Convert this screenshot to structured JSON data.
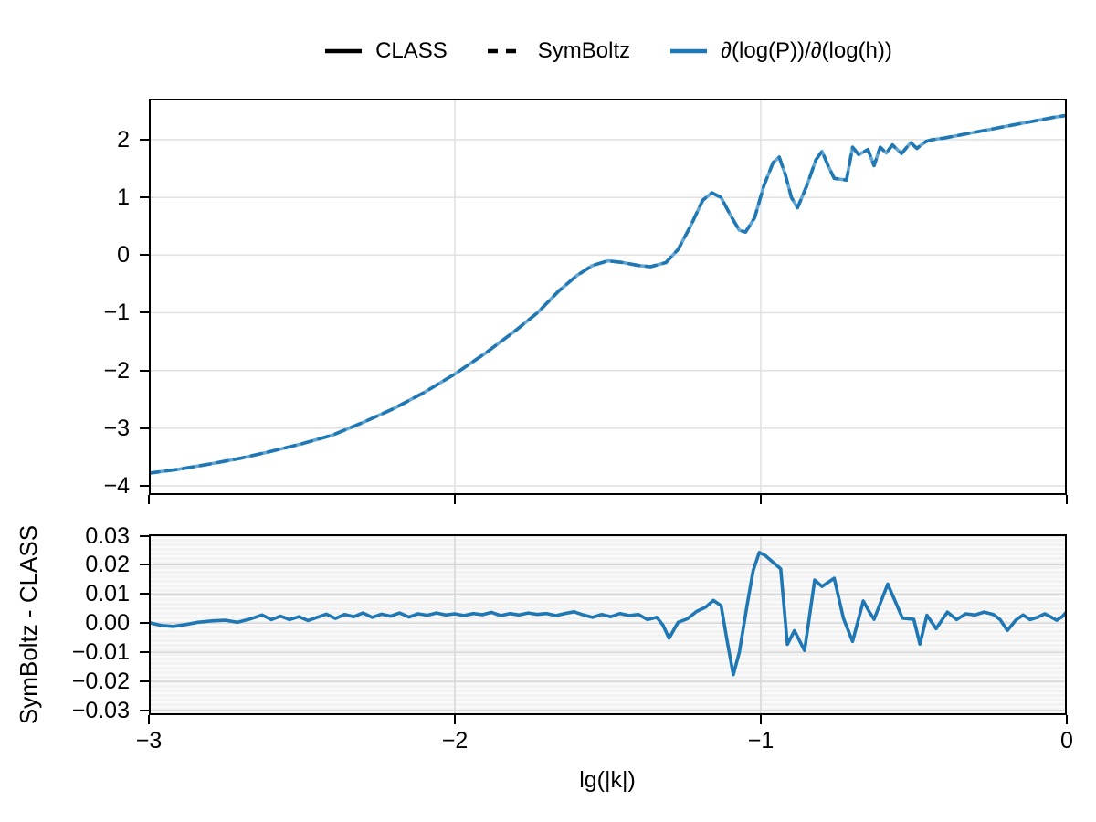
{
  "colors": {
    "accent_blue": "#1f77b4",
    "light_blue": "#64a7d2",
    "black": "#000000",
    "grid_main": "#e2e2e2",
    "grid_residual": "#d8d8d8",
    "residual_bg_stripe": "#f2f2f2"
  },
  "chart_data": [
    {
      "type": "line",
      "panel": "main",
      "title": "",
      "xlabel": "",
      "ylabel": "",
      "xlim": [
        -3,
        0
      ],
      "ylim": [
        -4.158,
        2.712
      ],
      "xticks": [
        -3,
        -2,
        -1,
        0
      ],
      "xtick_labels": [
        "−3",
        "−2",
        "−1",
        "0"
      ],
      "xtick_labels_visible": false,
      "yticks": [
        2,
        1,
        0,
        -1,
        -2,
        -3,
        -4
      ],
      "ytick_labels": [
        "2",
        "1",
        "0",
        "−1",
        "−2",
        "−3",
        "−4"
      ],
      "grid": true,
      "legend": {
        "position": "top-center",
        "items": [
          {
            "label": "CLASS",
            "linestyle": "solid",
            "color": "#000000"
          },
          {
            "label": "SymBoltz",
            "linestyle": "dashed",
            "color": "#000000"
          },
          {
            "label": "∂(log(P))/∂(log(h))",
            "linestyle": "solid",
            "color": "#1f77b4"
          }
        ]
      },
      "series": [
        {
          "name": "CLASS",
          "linestyle": "solid",
          "color": "#64a7d2",
          "points_ref": "curve"
        },
        {
          "name": "SymBoltz",
          "linestyle": "dashed",
          "color": "#1f77b4",
          "points_ref": "curve"
        }
      ],
      "curve": [
        [
          -3.0,
          -3.78
        ],
        [
          -2.9,
          -3.71
        ],
        [
          -2.8,
          -3.62
        ],
        [
          -2.7,
          -3.52
        ],
        [
          -2.6,
          -3.4
        ],
        [
          -2.5,
          -3.27
        ],
        [
          -2.4,
          -3.12
        ],
        [
          -2.3,
          -2.9
        ],
        [
          -2.2,
          -2.66
        ],
        [
          -2.1,
          -2.38
        ],
        [
          -2.0,
          -2.06
        ],
        [
          -1.9,
          -1.7
        ],
        [
          -1.8,
          -1.3
        ],
        [
          -1.73,
          -1.0
        ],
        [
          -1.66,
          -0.62
        ],
        [
          -1.6,
          -0.35
        ],
        [
          -1.55,
          -0.18
        ],
        [
          -1.5,
          -0.1
        ],
        [
          -1.45,
          -0.13
        ],
        [
          -1.4,
          -0.18
        ],
        [
          -1.36,
          -0.2
        ],
        [
          -1.31,
          -0.13
        ],
        [
          -1.27,
          0.1
        ],
        [
          -1.23,
          0.5
        ],
        [
          -1.19,
          0.95
        ],
        [
          -1.16,
          1.08
        ],
        [
          -1.13,
          1.0
        ],
        [
          -1.1,
          0.7
        ],
        [
          -1.07,
          0.43
        ],
        [
          -1.05,
          0.4
        ],
        [
          -1.02,
          0.65
        ],
        [
          -0.99,
          1.2
        ],
        [
          -0.96,
          1.6
        ],
        [
          -0.94,
          1.7
        ],
        [
          -0.92,
          1.4
        ],
        [
          -0.9,
          1.0
        ],
        [
          -0.88,
          0.82
        ],
        [
          -0.85,
          1.2
        ],
        [
          -0.82,
          1.65
        ],
        [
          -0.8,
          1.8
        ],
        [
          -0.78,
          1.55
        ],
        [
          -0.76,
          1.33
        ],
        [
          -0.72,
          1.3
        ],
        [
          -0.7,
          1.87
        ],
        [
          -0.68,
          1.74
        ],
        [
          -0.65,
          1.83
        ],
        [
          -0.63,
          1.55
        ],
        [
          -0.61,
          1.87
        ],
        [
          -0.59,
          1.77
        ],
        [
          -0.57,
          1.91
        ],
        [
          -0.54,
          1.76
        ],
        [
          -0.51,
          1.95
        ],
        [
          -0.49,
          1.85
        ],
        [
          -0.46,
          1.97
        ],
        [
          -0.44,
          2.0
        ],
        [
          -0.4,
          2.03
        ],
        [
          -0.36,
          2.07
        ],
        [
          -0.32,
          2.11
        ],
        [
          -0.28,
          2.15
        ],
        [
          -0.24,
          2.19
        ],
        [
          -0.2,
          2.23
        ],
        [
          -0.16,
          2.27
        ],
        [
          -0.12,
          2.31
        ],
        [
          -0.08,
          2.35
        ],
        [
          -0.04,
          2.39
        ],
        [
          0.0,
          2.42
        ]
      ]
    },
    {
      "type": "line",
      "panel": "residual",
      "title": "",
      "xlabel": "lg(|k|)",
      "ylabel": "SymBoltz - CLASS",
      "xlim": [
        -3,
        0
      ],
      "ylim": [
        -0.0316,
        0.0305
      ],
      "xticks": [
        -3,
        -2,
        -1,
        0
      ],
      "xtick_labels": [
        "−3",
        "−2",
        "−1",
        "0"
      ],
      "xtick_labels_visible": true,
      "yticks": [
        0.03,
        0.02,
        0.01,
        0,
        -0.01,
        -0.02,
        -0.03
      ],
      "ytick_labels": [
        "0.03",
        "0.02",
        "0.01",
        "0.00",
        "−0.01",
        "−0.02",
        "−0.03"
      ],
      "grid": true,
      "series": [
        {
          "name": "SymBoltz minus CLASS",
          "linestyle": "solid",
          "color": "#1f77b4",
          "points_ref": "curve"
        }
      ],
      "curve": [
        [
          -3.0,
          0.0002
        ],
        [
          -2.96,
          -0.0008
        ],
        [
          -2.92,
          -0.0011
        ],
        [
          -2.88,
          -0.0005
        ],
        [
          -2.84,
          0.0003
        ],
        [
          -2.79,
          0.0008
        ],
        [
          -2.75,
          0.001
        ],
        [
          -2.71,
          0.0003
        ],
        [
          -2.67,
          0.0014
        ],
        [
          -2.63,
          0.0028
        ],
        [
          -2.6,
          0.0012
        ],
        [
          -2.57,
          0.0024
        ],
        [
          -2.54,
          0.0012
        ],
        [
          -2.51,
          0.0022
        ],
        [
          -2.48,
          0.0009
        ],
        [
          -2.45,
          0.002
        ],
        [
          -2.42,
          0.0031
        ],
        [
          -2.39,
          0.0016
        ],
        [
          -2.36,
          0.003
        ],
        [
          -2.33,
          0.0022
        ],
        [
          -2.3,
          0.0035
        ],
        [
          -2.27,
          0.002
        ],
        [
          -2.24,
          0.0031
        ],
        [
          -2.21,
          0.0024
        ],
        [
          -2.18,
          0.0035
        ],
        [
          -2.15,
          0.0021
        ],
        [
          -2.12,
          0.0032
        ],
        [
          -2.09,
          0.0027
        ],
        [
          -2.06,
          0.0035
        ],
        [
          -2.03,
          0.0028
        ],
        [
          -2.0,
          0.0032
        ],
        [
          -1.97,
          0.0026
        ],
        [
          -1.94,
          0.0033
        ],
        [
          -1.91,
          0.0029
        ],
        [
          -1.88,
          0.0037
        ],
        [
          -1.85,
          0.0026
        ],
        [
          -1.82,
          0.0033
        ],
        [
          -1.79,
          0.0028
        ],
        [
          -1.76,
          0.0035
        ],
        [
          -1.73,
          0.003
        ],
        [
          -1.7,
          0.0033
        ],
        [
          -1.67,
          0.0026
        ],
        [
          -1.64,
          0.0033
        ],
        [
          -1.61,
          0.0039
        ],
        [
          -1.58,
          0.0028
        ],
        [
          -1.55,
          0.002
        ],
        [
          -1.52,
          0.003
        ],
        [
          -1.49,
          0.0022
        ],
        [
          -1.46,
          0.0033
        ],
        [
          -1.43,
          0.0026
        ],
        [
          -1.4,
          0.003
        ],
        [
          -1.37,
          0.0012
        ],
        [
          -1.34,
          0.002
        ],
        [
          -1.32,
          -0.0006
        ],
        [
          -1.3,
          -0.0052
        ],
        [
          -1.27,
          0.0003
        ],
        [
          -1.24,
          0.0015
        ],
        [
          -1.21,
          0.004
        ],
        [
          -1.18,
          0.0055
        ],
        [
          -1.155,
          0.0078
        ],
        [
          -1.13,
          0.006
        ],
        [
          -1.11,
          -0.006
        ],
        [
          -1.09,
          -0.0177
        ],
        [
          -1.07,
          -0.01
        ],
        [
          -1.045,
          0.006
        ],
        [
          -1.025,
          0.018
        ],
        [
          -1.005,
          0.0243
        ],
        [
          -0.985,
          0.0232
        ],
        [
          -0.95,
          0.02
        ],
        [
          -0.935,
          0.0186
        ],
        [
          -0.913,
          -0.0073
        ],
        [
          -0.89,
          -0.0026
        ],
        [
          -0.857,
          -0.0094
        ],
        [
          -0.824,
          0.0148
        ],
        [
          -0.8,
          0.0126
        ],
        [
          -0.76,
          0.0154
        ],
        [
          -0.73,
          0.0016
        ],
        [
          -0.7,
          -0.0063
        ],
        [
          -0.665,
          0.0076
        ],
        [
          -0.65,
          0.0047
        ],
        [
          -0.63,
          0.0013
        ],
        [
          -0.585,
          0.0134
        ],
        [
          -0.537,
          0.0017
        ],
        [
          -0.5,
          0.0013
        ],
        [
          -0.48,
          -0.0072
        ],
        [
          -0.457,
          0.0027
        ],
        [
          -0.427,
          -0.0019
        ],
        [
          -0.39,
          0.0038
        ],
        [
          -0.36,
          0.0012
        ],
        [
          -0.33,
          0.0032
        ],
        [
          -0.3,
          0.0028
        ],
        [
          -0.27,
          0.0038
        ],
        [
          -0.24,
          0.003
        ],
        [
          -0.218,
          0.0012
        ],
        [
          -0.194,
          -0.0025
        ],
        [
          -0.167,
          0.001
        ],
        [
          -0.143,
          0.0028
        ],
        [
          -0.12,
          0.0012
        ],
        [
          -0.096,
          0.002
        ],
        [
          -0.072,
          0.0032
        ],
        [
          -0.05,
          0.002
        ],
        [
          -0.033,
          0.001
        ],
        [
          -0.015,
          0.0022
        ],
        [
          0.0,
          0.004
        ]
      ]
    }
  ]
}
